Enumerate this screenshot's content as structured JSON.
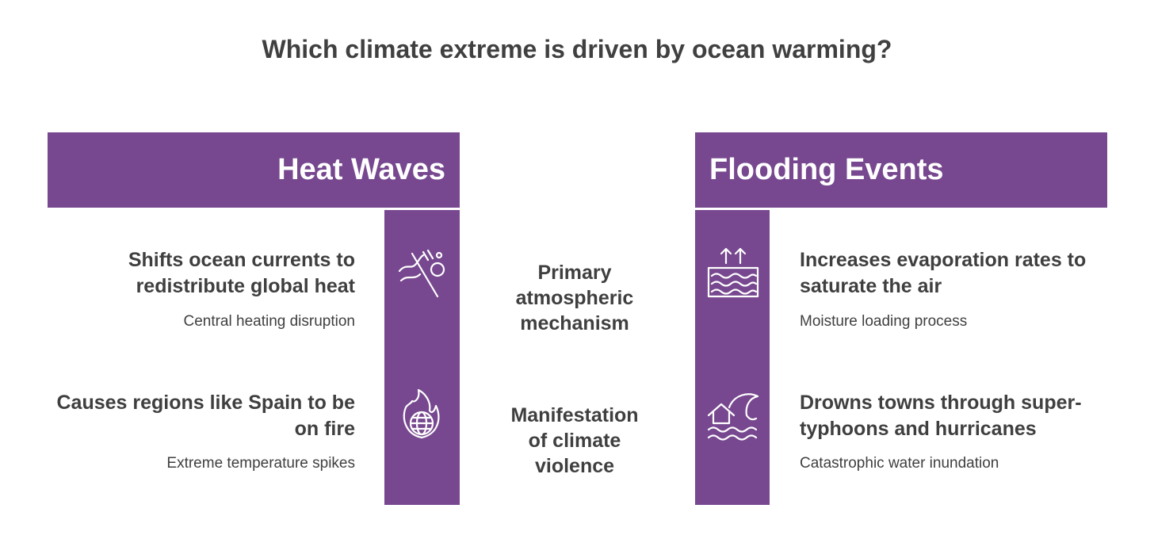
{
  "title": "Which climate extreme is driven by ocean warming?",
  "left": {
    "header": "Heat Waves",
    "items": [
      {
        "title": "Shifts ocean currents to redistribute global heat",
        "subtitle": "Central heating disruption"
      },
      {
        "title": "Causes regions like Spain to be on fire",
        "subtitle": "Extreme temperature spikes"
      }
    ]
  },
  "center": {
    "labels": [
      "Primary atmospheric mechanism",
      "Manifestation of climate violence"
    ]
  },
  "right": {
    "header": "Flooding Events",
    "items": [
      {
        "title": "Increases evaporation rates to saturate the air",
        "subtitle": "Moisture loading process"
      },
      {
        "title": "Drowns towns through super-typhoons and hurricanes",
        "subtitle": "Catastrophic water inundation"
      }
    ]
  }
}
